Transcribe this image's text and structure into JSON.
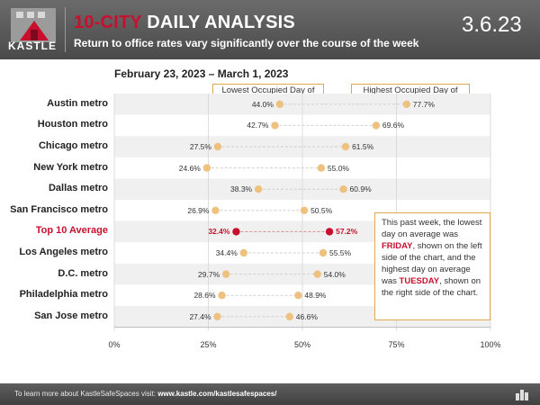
{
  "header": {
    "brand": "KASTLE",
    "title_accent": "10-CITY",
    "title_rest": " DAILY ANALYSIS",
    "subtitle": "Return to office rates vary significantly over the course of the week",
    "date_code": "3.6.23"
  },
  "colors": {
    "red": "#c8102e",
    "dot": "#eec17f",
    "line": "#cfcfcf",
    "stripe": "#f0f0f0"
  },
  "chart_data": {
    "type": "dumbbell",
    "title": "February 23, 2023 – March 1, 2023",
    "legend": [
      "Lowest Occupied Day of Week",
      "Highest Occupied Day of Week"
    ],
    "xlim": [
      0,
      100
    ],
    "xticks": [
      "0%",
      "25%",
      "50%",
      "75%",
      "100%"
    ],
    "categories": [
      "Austin metro",
      "Houston metro",
      "Chicago metro",
      "New York metro",
      "Dallas metro",
      "San Francisco metro",
      "Top 10 Average",
      "Los Angeles metro",
      "D.C. metro",
      "Philadelphia metro",
      "San Jose metro"
    ],
    "low": [
      44.0,
      42.7,
      27.5,
      24.6,
      38.3,
      26.9,
      32.4,
      34.4,
      29.7,
      28.6,
      27.4
    ],
    "high": [
      77.7,
      69.6,
      61.5,
      55.0,
      60.9,
      50.5,
      57.2,
      55.5,
      54.0,
      48.9,
      46.6
    ],
    "low_labels": [
      "44.0%",
      "42.7%",
      "27.5%",
      "24.6%",
      "38.3%",
      "26.9%",
      "32.4%",
      "34.4%",
      "29.7%",
      "28.6%",
      "27.4%"
    ],
    "high_labels": [
      "77.7%",
      "69.6%",
      "61.5%",
      "55.0%",
      "60.9%",
      "50.5%",
      "57.2%",
      "55.5%",
      "54.0%",
      "48.9%",
      "46.6%"
    ],
    "highlight": "Top 10 Average"
  },
  "note": {
    "p1": "This past week, the lowest day on average was ",
    "w1": "FRIDAY",
    "p2": ", shown on the left side of the chart, and the highest day on average was ",
    "w2": "TUESDAY",
    "p3": ", shown on the right side of the chart."
  },
  "footer": {
    "prefix": "To learn more about KastleSafeSpaces visit: ",
    "link": "www.kastle.com/kastlesafespaces/"
  }
}
